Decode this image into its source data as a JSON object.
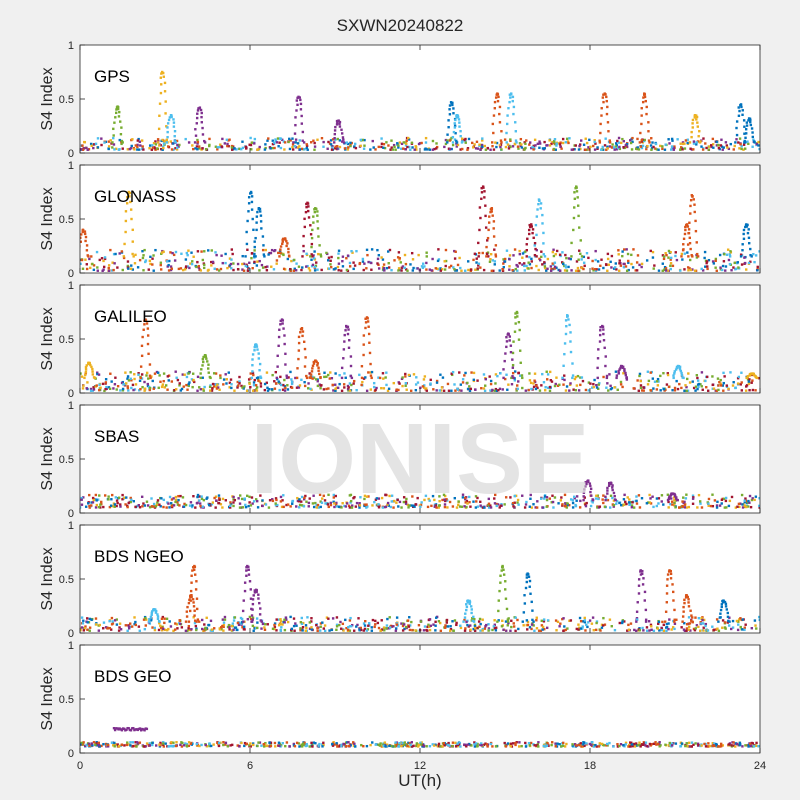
{
  "figure": {
    "title": "SXWN20240822",
    "xlabel": "UT(h)",
    "watermark": "IONISE",
    "background": "#f0f0f0",
    "axes_background": "#ffffff"
  },
  "colors": [
    "#0072BD",
    "#D95319",
    "#EDB120",
    "#7E2F8E",
    "#77AC30",
    "#4DBEEE",
    "#A2142F"
  ],
  "chart_data": [
    {
      "type": "scatter",
      "panel_label": "GPS",
      "ylabel": "S4 Index",
      "xlim": [
        0,
        24
      ],
      "ylim": [
        0,
        1
      ],
      "yticks": [
        "0",
        "0.5",
        "1"
      ],
      "xticks": [],
      "grid": false,
      "baseline": [
        0.03,
        0.14
      ],
      "spikes": [
        [
          1.4,
          0.43,
          4
        ],
        [
          3.0,
          0.75,
          2
        ],
        [
          3.3,
          0.35,
          5
        ],
        [
          4.3,
          0.42,
          3
        ],
        [
          7.8,
          0.52,
          3
        ],
        [
          9.2,
          0.3,
          3
        ],
        [
          13.2,
          0.47,
          0
        ],
        [
          13.4,
          0.35,
          5
        ],
        [
          14.8,
          0.55,
          1
        ],
        [
          15.3,
          0.55,
          5
        ],
        [
          18.6,
          0.55,
          1
        ],
        [
          20.0,
          0.55,
          1
        ],
        [
          21.8,
          0.35,
          2
        ],
        [
          23.4,
          0.45,
          0
        ],
        [
          23.7,
          0.32,
          0
        ]
      ]
    },
    {
      "type": "scatter",
      "panel_label": "GLONASS",
      "ylabel": "S4 Index",
      "xlim": [
        0,
        24
      ],
      "ylim": [
        0,
        1
      ],
      "yticks": [
        "0",
        "0.5",
        "1"
      ],
      "xticks": [],
      "grid": false,
      "baseline": [
        0.02,
        0.22
      ],
      "spikes": [
        [
          0.2,
          0.4,
          1
        ],
        [
          1.8,
          0.75,
          2
        ],
        [
          6.1,
          0.75,
          0
        ],
        [
          6.4,
          0.6,
          0
        ],
        [
          7.3,
          0.32,
          1
        ],
        [
          8.1,
          0.65,
          6
        ],
        [
          8.4,
          0.6,
          4
        ],
        [
          14.3,
          0.8,
          6
        ],
        [
          14.6,
          0.6,
          1
        ],
        [
          16.3,
          0.68,
          5
        ],
        [
          16.0,
          0.45,
          6
        ],
        [
          17.6,
          0.8,
          4
        ],
        [
          21.7,
          0.72,
          1
        ],
        [
          21.5,
          0.45,
          1
        ],
        [
          23.6,
          0.45,
          0
        ]
      ]
    },
    {
      "type": "scatter",
      "panel_label": "GALILEO",
      "ylabel": "S4 Index",
      "xlim": [
        0,
        24
      ],
      "ylim": [
        0,
        1
      ],
      "yticks": [
        "0",
        "0.5",
        "1"
      ],
      "xticks": [],
      "grid": false,
      "baseline": [
        0.02,
        0.2
      ],
      "spikes": [
        [
          0.4,
          0.28,
          2
        ],
        [
          2.4,
          0.68,
          1
        ],
        [
          4.5,
          0.35,
          4
        ],
        [
          6.3,
          0.45,
          5
        ],
        [
          7.2,
          0.68,
          3
        ],
        [
          7.9,
          0.6,
          1
        ],
        [
          9.5,
          0.62,
          3
        ],
        [
          10.2,
          0.7,
          1
        ],
        [
          8.4,
          0.3,
          1
        ],
        [
          15.5,
          0.75,
          4
        ],
        [
          15.2,
          0.55,
          3
        ],
        [
          17.3,
          0.72,
          5
        ],
        [
          18.5,
          0.62,
          3
        ],
        [
          19.2,
          0.25,
          3
        ],
        [
          21.2,
          0.25,
          5
        ],
        [
          23.8,
          0.18,
          2
        ]
      ]
    },
    {
      "type": "scatter",
      "panel_label": "SBAS",
      "ylabel": "S4 Index",
      "xlim": [
        0,
        24
      ],
      "ylim": [
        0,
        1
      ],
      "yticks": [
        "0",
        "0.5",
        "1"
      ],
      "xticks": [],
      "grid": false,
      "baseline": [
        0.05,
        0.17
      ],
      "spikes": [
        [
          18.0,
          0.3,
          3
        ],
        [
          18.8,
          0.28,
          3
        ],
        [
          21.0,
          0.18,
          3
        ]
      ]
    },
    {
      "type": "scatter",
      "panel_label": "BDS NGEO",
      "ylabel": "S4 Index",
      "xlim": [
        0,
        24
      ],
      "ylim": [
        0,
        1
      ],
      "yticks": [
        "0",
        "0.5",
        "1"
      ],
      "xticks": [],
      "grid": false,
      "baseline": [
        0.02,
        0.15
      ],
      "spikes": [
        [
          4.1,
          0.62,
          1
        ],
        [
          4.0,
          0.35,
          1
        ],
        [
          2.7,
          0.22,
          5
        ],
        [
          6.0,
          0.62,
          3
        ],
        [
          6.3,
          0.4,
          3
        ],
        [
          13.8,
          0.3,
          5
        ],
        [
          15.0,
          0.62,
          4
        ],
        [
          15.9,
          0.55,
          0
        ],
        [
          19.9,
          0.58,
          3
        ],
        [
          20.9,
          0.58,
          1
        ],
        [
          21.5,
          0.35,
          1
        ],
        [
          22.8,
          0.3,
          0
        ]
      ]
    },
    {
      "type": "scatter",
      "panel_label": "BDS GEO",
      "ylabel": "S4 Index",
      "xlim": [
        0,
        24
      ],
      "ylim": [
        0,
        1
      ],
      "yticks": [
        "0",
        "0.5",
        "1"
      ],
      "xticks": [
        "0",
        "6",
        "12",
        "18",
        "24"
      ],
      "grid": false,
      "baseline": [
        0.06,
        0.1
      ],
      "segments": [
        [
          1.2,
          2.4,
          0.22,
          3
        ]
      ]
    }
  ]
}
